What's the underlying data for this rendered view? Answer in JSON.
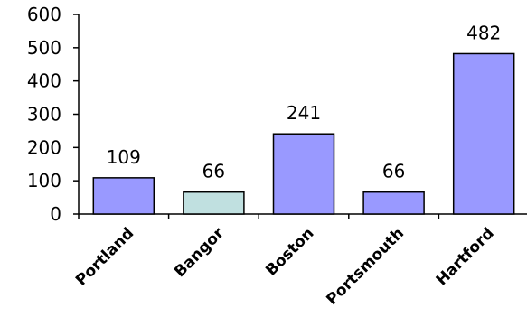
{
  "chart_data": {
    "type": "bar",
    "categories": [
      "Portland",
      "Bangor",
      "Boston",
      "Portsmouth",
      "Hartford"
    ],
    "values": [
      109,
      66,
      241,
      66,
      482
    ],
    "data_labels": [
      "109",
      "66",
      "241",
      "66",
      "482"
    ],
    "bar_colors": [
      "#9999ff",
      "#c0e0e0",
      "#9999ff",
      "#9999ff",
      "#9999ff"
    ],
    "ylim": [
      0,
      600
    ],
    "yticks": [
      0,
      100,
      200,
      300,
      400,
      500,
      600
    ],
    "ytick_labels": [
      "0",
      "100",
      "200",
      "300",
      "400",
      "500",
      "600"
    ],
    "grid": false,
    "legend": "none",
    "title": "",
    "xlabel": "",
    "ylabel": ""
  }
}
